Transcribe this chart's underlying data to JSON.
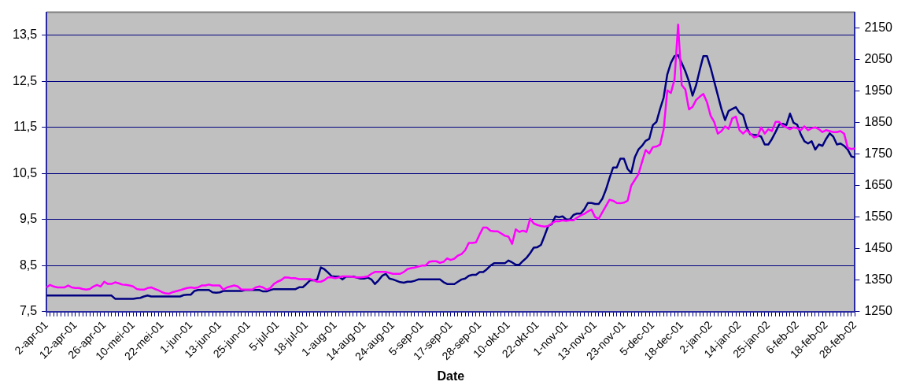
{
  "chart_data": {
    "type": "line",
    "xlabel": "Date",
    "categories": [
      "2-apr-01",
      null,
      null,
      null,
      null,
      null,
      null,
      null,
      "12-apr-01",
      null,
      null,
      null,
      null,
      null,
      null,
      null,
      "26-apr-01",
      null,
      null,
      null,
      null,
      null,
      null,
      null,
      "10-mei-01",
      null,
      null,
      null,
      null,
      null,
      null,
      null,
      "22-mei-01",
      null,
      null,
      null,
      null,
      null,
      null,
      null,
      "1-jun-01",
      null,
      null,
      null,
      null,
      null,
      null,
      null,
      "13-jun-01",
      null,
      null,
      null,
      null,
      null,
      null,
      null,
      "25-jun-01",
      null,
      null,
      null,
      null,
      null,
      null,
      null,
      "5-jul-01",
      null,
      null,
      null,
      null,
      null,
      null,
      null,
      "18-jul-01",
      null,
      null,
      null,
      null,
      null,
      null,
      null,
      "1-aug-01",
      null,
      null,
      null,
      null,
      null,
      null,
      null,
      "14-aug-01",
      null,
      null,
      null,
      null,
      null,
      null,
      null,
      "24-aug-01",
      null,
      null,
      null,
      null,
      null,
      null,
      null,
      "5-sep-01",
      null,
      null,
      null,
      null,
      null,
      null,
      null,
      "17-sep-01",
      null,
      null,
      null,
      null,
      null,
      null,
      null,
      "28-sep-01",
      null,
      null,
      null,
      null,
      null,
      null,
      null,
      "10-okt-01",
      null,
      null,
      null,
      null,
      null,
      null,
      null,
      "22-okt-01",
      null,
      null,
      null,
      null,
      null,
      null,
      null,
      "1-nov-01",
      null,
      null,
      null,
      null,
      null,
      null,
      null,
      "13-nov-01",
      null,
      null,
      null,
      null,
      null,
      null,
      null,
      "23-nov-01",
      null,
      null,
      null,
      null,
      null,
      null,
      null,
      "5-dec-01",
      null,
      null,
      null,
      null,
      null,
      null,
      null,
      "18-dec-01",
      null,
      null,
      null,
      null,
      null,
      null,
      null,
      "2-jan-02",
      null,
      null,
      null,
      null,
      null,
      null,
      null,
      "14-jan-02",
      null,
      null,
      null,
      null,
      null,
      null,
      null,
      "25-jan-02",
      null,
      null,
      null,
      null,
      null,
      null,
      null,
      "6-feb-02",
      null,
      null,
      null,
      null,
      null,
      null,
      null,
      "18-feb-02",
      null,
      null,
      null,
      null,
      null,
      null,
      null,
      "28-feb-02"
    ],
    "series": [
      {
        "color": "#ff00ff",
        "axis": "y2",
        "values": [
          1327,
          1335,
          1330,
          1327,
          1327,
          1327,
          1333,
          1327,
          1325,
          1325,
          1322,
          1320,
          1322,
          1330,
          1335,
          1330,
          1345,
          1338,
          1338,
          1343,
          1340,
          1336,
          1335,
          1333,
          1330,
          1322,
          1320,
          1320,
          1325,
          1327,
          1322,
          1318,
          1312,
          1308,
          1307,
          1312,
          1315,
          1318,
          1322,
          1325,
          1327,
          1325,
          1327,
          1333,
          1333,
          1336,
          1333,
          1333,
          1333,
          1320,
          1327,
          1330,
          1333,
          1330,
          1320,
          1320,
          1320,
          1320,
          1327,
          1330,
          1327,
          1320,
          1325,
          1338,
          1345,
          1350,
          1359,
          1358,
          1356,
          1356,
          1353,
          1353,
          1353,
          1353,
          1350,
          1345,
          1345,
          1350,
          1359,
          1359,
          1356,
          1359,
          1362,
          1362,
          1362,
          1360,
          1359,
          1359,
          1360,
          1362,
          1370,
          1376,
          1376,
          1376,
          1376,
          1373,
          1370,
          1370,
          1370,
          1376,
          1385,
          1388,
          1390,
          1393,
          1396,
          1396,
          1408,
          1410,
          1410,
          1405,
          1408,
          1419,
          1414,
          1418,
          1428,
          1433,
          1445,
          1468,
          1468,
          1470,
          1495,
          1517,
          1517,
          1507,
          1505,
          1505,
          1498,
          1491,
          1488,
          1465,
          1511,
          1503,
          1507,
          1503,
          1545,
          1530,
          1525,
          1522,
          1520,
          1522,
          1530,
          1537,
          1537,
          1540,
          1538,
          1540,
          1540,
          1548,
          1555,
          1560,
          1568,
          1574,
          1550,
          1545,
          1565,
          1585,
          1605,
          1602,
          1595,
          1594,
          1596,
          1602,
          1650,
          1668,
          1686,
          1725,
          1763,
          1752,
          1772,
          1774,
          1780,
          1829,
          1952,
          1944,
          1987,
          2161,
          1969,
          1955,
          1892,
          1900,
          1922,
          1932,
          1941,
          1915,
          1872,
          1852,
          1815,
          1823,
          1838,
          1830,
          1863,
          1869,
          1826,
          1815,
          1826,
          1815,
          1803,
          1806,
          1835,
          1815,
          1829,
          1823,
          1852,
          1852,
          1840,
          1835,
          1829,
          1835,
          1832,
          1826,
          1838,
          1826,
          1832,
          1835,
          1829,
          1820,
          1826,
          1823,
          1820,
          1820,
          1823,
          1815,
          1770,
          1766,
          1768
        ]
      },
      {
        "color": "#000080",
        "values": [
          7.85,
          7.85,
          7.85,
          7.85,
          7.85,
          7.85,
          7.85,
          7.85,
          7.85,
          7.85,
          7.85,
          7.85,
          7.85,
          7.85,
          7.85,
          7.85,
          7.85,
          7.85,
          7.85,
          7.78,
          7.78,
          7.78,
          7.78,
          7.78,
          7.78,
          7.79,
          7.8,
          7.83,
          7.85,
          7.83,
          7.83,
          7.83,
          7.83,
          7.83,
          7.83,
          7.83,
          7.83,
          7.83,
          7.86,
          7.87,
          7.87,
          7.95,
          7.97,
          7.97,
          7.97,
          7.97,
          7.92,
          7.91,
          7.92,
          7.95,
          7.95,
          7.95,
          7.95,
          7.95,
          7.95,
          7.97,
          7.97,
          7.97,
          7.97,
          7.97,
          7.94,
          7.94,
          7.97,
          7.99,
          7.99,
          7.99,
          7.99,
          7.99,
          7.99,
          7.99,
          8.03,
          8.03,
          8.1,
          8.18,
          8.18,
          8.2,
          8.46,
          8.42,
          8.35,
          8.27,
          8.26,
          8.26,
          8.2,
          8.26,
          8.26,
          8.26,
          8.24,
          8.22,
          8.22,
          8.24,
          8.2,
          8.1,
          8.18,
          8.28,
          8.32,
          8.22,
          8.2,
          8.17,
          8.14,
          8.13,
          8.15,
          8.15,
          8.17,
          8.2,
          8.2,
          8.2,
          8.2,
          8.2,
          8.2,
          8.2,
          8.14,
          8.1,
          8.1,
          8.1,
          8.15,
          8.2,
          8.22,
          8.28,
          8.3,
          8.3,
          8.36,
          8.36,
          8.42,
          8.5,
          8.55,
          8.55,
          8.55,
          8.55,
          8.61,
          8.57,
          8.52,
          8.52,
          8.6,
          8.67,
          8.77,
          8.89,
          8.9,
          8.95,
          9.15,
          9.36,
          9.4,
          9.57,
          9.55,
          9.57,
          9.5,
          9.5,
          9.6,
          9.63,
          9.63,
          9.72,
          9.86,
          9.86,
          9.84,
          9.84,
          9.95,
          10.15,
          10.4,
          10.63,
          10.63,
          10.82,
          10.82,
          10.6,
          10.51,
          10.85,
          11.02,
          11.1,
          11.21,
          11.25,
          11.55,
          11.62,
          11.9,
          12.15,
          12.65,
          12.9,
          13.05,
          13.07,
          12.9,
          12.72,
          12.5,
          12.19,
          12.42,
          12.75,
          13.05,
          13.05,
          12.8,
          12.5,
          12.2,
          11.9,
          11.66,
          11.86,
          11.9,
          11.94,
          11.82,
          11.77,
          11.5,
          11.35,
          11.34,
          11.33,
          11.3,
          11.13,
          11.13,
          11.25,
          11.4,
          11.56,
          11.58,
          11.55,
          11.8,
          11.6,
          11.56,
          11.35,
          11.2,
          11.15,
          11.2,
          11.02,
          11.13,
          11.1,
          11.25,
          11.37,
          11.3,
          11.13,
          11.15,
          11.1,
          11.02,
          10.87,
          10.85
        ]
      }
    ],
    "ylim": [
      7.5,
      14
    ],
    "yticks": [
      {
        "value": 7.5,
        "label": "7,5"
      },
      {
        "value": 8.5,
        "label": "8,5"
      },
      {
        "value": 9.5,
        "label": "9,5"
      },
      {
        "value": 10.5,
        "label": "10,5"
      },
      {
        "value": 11.5,
        "label": "11,5"
      },
      {
        "value": 12.5,
        "label": "12,5"
      },
      {
        "value": 13.5,
        "label": "13,5"
      }
    ],
    "y2lim": [
      1250,
      2200
    ],
    "y2ticks": [
      1250,
      1350,
      1450,
      1550,
      1650,
      1750,
      1850,
      1950,
      2050,
      2150
    ],
    "grid": "y",
    "marker": "none",
    "line_style": "solid"
  }
}
